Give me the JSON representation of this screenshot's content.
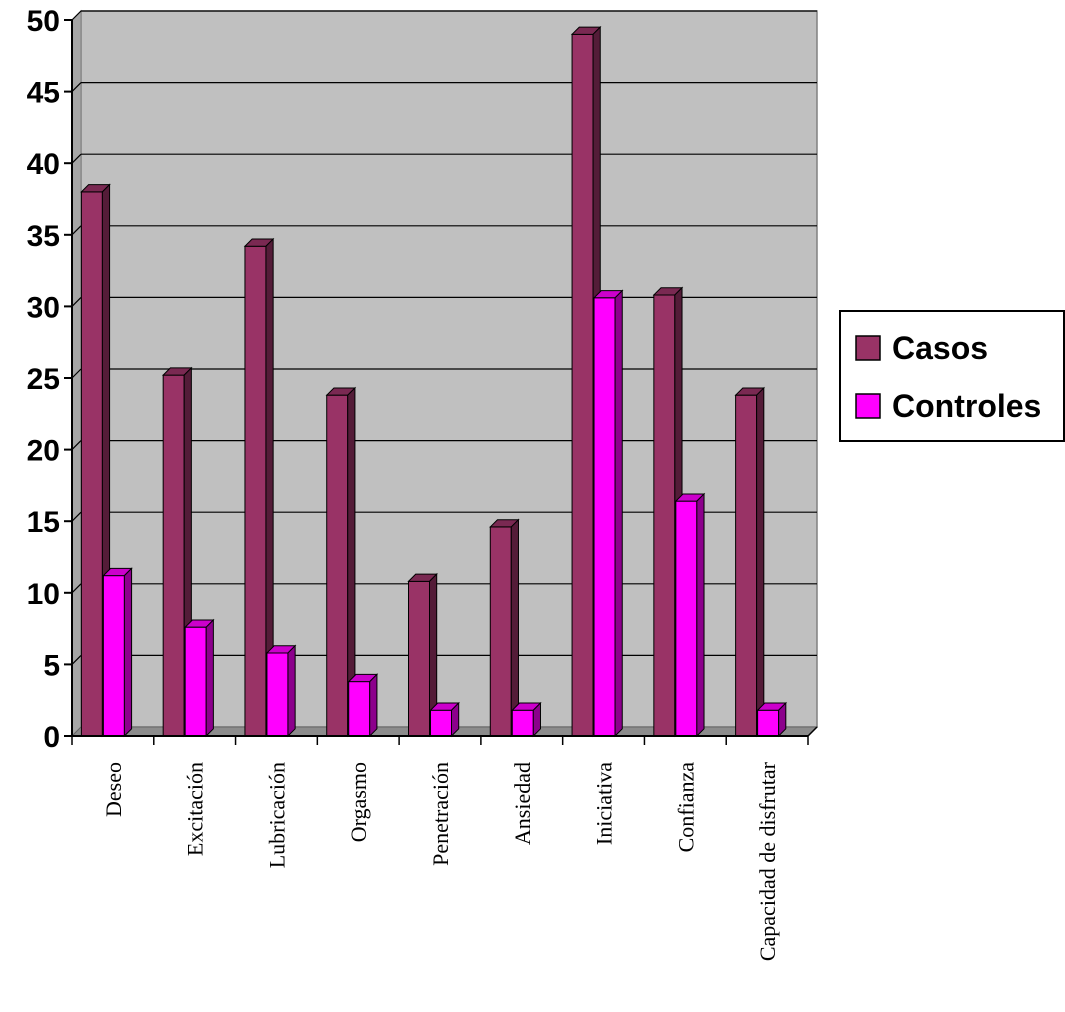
{
  "chart_data": {
    "type": "bar",
    "categories": [
      "Deseo",
      "Excitación",
      "Lubricación",
      "Orgasmo",
      "Penetración",
      "Ansiedad",
      "Iniciativa",
      "Confianza",
      "Capacidad  de disfrutar"
    ],
    "series": [
      {
        "name": "Casos",
        "color": "#993366",
        "values": [
          38,
          25.2,
          34.2,
          23.8,
          10.8,
          14.6,
          49,
          30.8,
          23.8
        ]
      },
      {
        "name": "Controles",
        "color": "#ff00ff",
        "values": [
          11.2,
          7.6,
          5.8,
          3.8,
          1.8,
          1.8,
          30.6,
          16.4,
          1.8
        ]
      }
    ],
    "yticks": [
      "0",
      "5",
      "10",
      "15",
      "20",
      "25",
      "30",
      "35",
      "40",
      "45",
      "50"
    ],
    "ylim": [
      0,
      50
    ],
    "grid": true,
    "legend": "right",
    "title": "",
    "xlabel": "",
    "ylabel": "",
    "plot_background": "#c0c0c0"
  }
}
